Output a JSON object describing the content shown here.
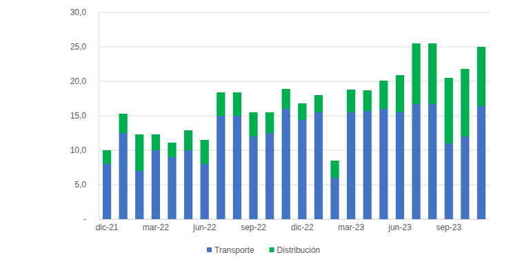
{
  "chart_data": {
    "type": "bar",
    "stacked": true,
    "grid": true,
    "legend": "bottom",
    "categories": [
      "dic-21",
      null,
      null,
      "mar-22",
      null,
      null,
      "jun-22",
      null,
      null,
      "sep-22",
      null,
      null,
      "dic-22",
      null,
      null,
      "mar-23",
      null,
      null,
      "jun-23",
      null,
      null,
      "sep-23",
      null,
      null
    ],
    "series": [
      {
        "name": "Transporte",
        "color": "#4472c4",
        "values": [
          8.0,
          12.5,
          7.0,
          10.0,
          9.0,
          10.0,
          8.0,
          15.0,
          15.0,
          12.0,
          12.5,
          16.0,
          14.4,
          15.5,
          6.0,
          15.5,
          15.7,
          16.0,
          15.5,
          16.7,
          16.7,
          11.0,
          12.0,
          16.4
        ]
      },
      {
        "name": "Distribución",
        "color": "#00b050",
        "values": [
          2.0,
          2.8,
          5.3,
          2.3,
          2.1,
          2.9,
          3.5,
          3.4,
          3.4,
          3.5,
          3.0,
          2.9,
          2.4,
          2.5,
          2.5,
          3.3,
          3.0,
          4.1,
          5.4,
          8.8,
          8.8,
          9.5,
          9.8,
          8.6
        ]
      }
    ],
    "ylim": [
      0,
      30
    ],
    "yticks": [
      {
        "value": 0,
        "label": "-"
      },
      {
        "value": 5,
        "label": "5,0"
      },
      {
        "value": 10,
        "label": "10,0"
      },
      {
        "value": 15,
        "label": "15,0"
      },
      {
        "value": 20,
        "label": "20,0"
      },
      {
        "value": 25,
        "label": "25,0"
      },
      {
        "value": 30,
        "label": "30,0"
      }
    ]
  }
}
